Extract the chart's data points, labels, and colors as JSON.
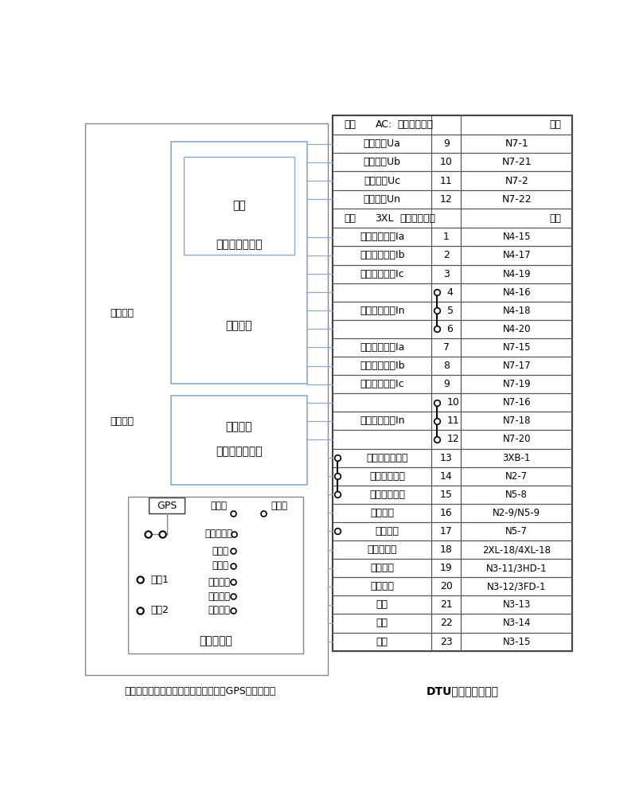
{
  "bottom_left_label": "测试装置（继保测试仪、动模测试仪、GPS对时装置）",
  "bottom_right_label": "DTU智能控制终端屏",
  "bg_color": "#ffffff",
  "line_color": "#8aaacc",
  "box_edge_color": "#8aaacc",
  "outer_border_color": "#888888",
  "table_edge_color": "#555555",
  "s1_rows": [
    [
      "采样电压Ua",
      "9",
      "N7-1"
    ],
    [
      "采样电压Ub",
      "10",
      "N7-21"
    ],
    [
      "采样电压Uc",
      "11",
      "N7-2"
    ],
    [
      "采样电压Un",
      "12",
      "N7-22"
    ]
  ],
  "s2_rows": [
    [
      "保护电流输入Ia",
      "1",
      "N4-15",
      false,
      false
    ],
    [
      "保护电流输入Ib",
      "2",
      "N4-17",
      false,
      false
    ],
    [
      "保护电流输入Ic",
      "3",
      "N4-19",
      false,
      false
    ],
    [
      "",
      "4",
      "N4-16",
      true,
      false
    ],
    [
      "保护电流输出In",
      "5",
      "N4-18",
      true,
      false
    ],
    [
      "",
      "6",
      "N4-20",
      true,
      false
    ],
    [
      "测量电流输入Ia",
      "7",
      "N7-15",
      false,
      false
    ],
    [
      "测量电流输入Ib",
      "8",
      "N7-17",
      false,
      false
    ],
    [
      "测量电流输入Ic",
      "9",
      "N7-19",
      false,
      false
    ],
    [
      "",
      "10",
      "N7-16",
      true,
      false
    ],
    [
      "测量电流输出In",
      "11",
      "N7-18",
      true,
      false
    ],
    [
      "",
      "12",
      "N7-20",
      true,
      false
    ],
    [
      "保护跳闸公共端",
      "13",
      "3XB-1",
      false,
      true
    ],
    [
      "保护跳闸出口",
      "14",
      "N2-7",
      false,
      true
    ],
    [
      "合分闸公共端",
      "15",
      "N5-8",
      false,
      true
    ],
    [
      "合闸出口",
      "16",
      "N2-9/N5-9",
      false,
      false
    ],
    [
      "分闸出口",
      "17",
      "N5-7",
      false,
      true
    ],
    [
      "遥信公共端",
      "18",
      "2XL-18/4XL-18",
      false,
      false
    ],
    [
      "开关合位",
      "19",
      "N3-11/3HD-1",
      false,
      false
    ],
    [
      "开关分位",
      "20",
      "N3-12/3FD-1",
      false,
      false
    ],
    [
      "遥信",
      "21",
      "N3-13",
      false,
      false
    ],
    [
      "遥信",
      "22",
      "N3-14",
      false,
      false
    ],
    [
      "遥信",
      "23",
      "N3-15",
      false,
      false
    ]
  ]
}
